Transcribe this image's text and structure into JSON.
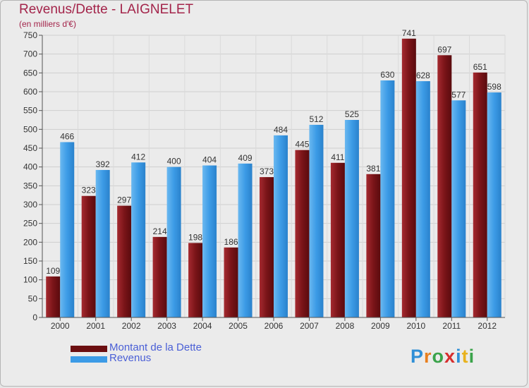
{
  "title": "Revenus/Dette - LAIGNELET",
  "subtitle": "(en milliers d'€)",
  "chart_data": {
    "type": "bar",
    "categories": [
      "2000",
      "2001",
      "2002",
      "2003",
      "2004",
      "2005",
      "2006",
      "2007",
      "2008",
      "2009",
      "2010",
      "2011",
      "2012"
    ],
    "series": [
      {
        "name": "Montant de la Dette",
        "color": "#7a1418",
        "values": [
          109,
          323,
          297,
          214,
          198,
          186,
          373,
          445,
          411,
          381,
          741,
          697,
          651
        ]
      },
      {
        "name": "Revenus",
        "color": "#3c9be6",
        "values": [
          466,
          392,
          412,
          400,
          404,
          409,
          484,
          512,
          525,
          630,
          628,
          577,
          598
        ]
      }
    ],
    "ylim": [
      0,
      750
    ],
    "yticks": [
      0,
      50,
      100,
      150,
      200,
      250,
      300,
      350,
      400,
      450,
      500,
      550,
      600,
      650,
      700,
      750
    ],
    "grid": true,
    "legend_position": "bottom-left"
  },
  "legend": {
    "items": [
      {
        "label": "Montant de la Dette",
        "color": "#6b0e10"
      },
      {
        "label": "Revenus",
        "color": "#3c9be6"
      }
    ]
  },
  "logo": {
    "letters": [
      "P",
      "r",
      "o",
      "x",
      "i",
      "t",
      "i"
    ],
    "colors": [
      "#2f8fd6",
      "#e87f1e",
      "#3aa34a",
      "#d62e2e",
      "#2f8fd6",
      "#e8b21e",
      "#3aa34a"
    ]
  }
}
